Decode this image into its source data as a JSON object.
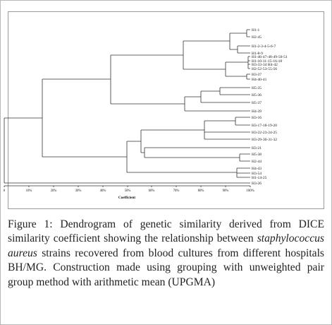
{
  "figure": {
    "axis_label": "Coefficient",
    "ticks": [
      "0",
      "10%",
      "20%",
      "30%",
      "40%",
      "50%",
      "60%",
      "70%",
      "80%",
      "90%",
      "100%"
    ],
    "leaves": [
      "H1-1",
      "H2-45",
      "H1-2-3-4-5-6-7",
      "H1-8-9",
      "H1-46-47-48-49-50-51",
      "H1-10-11-15-16-18",
      "H3-33-34 H4-42",
      "H2-52-53-55-56",
      "H3-37",
      "H4-40-41",
      "H5-35",
      "H5-36",
      "H5-37",
      "H4-39",
      "H3-16",
      "H3-17-18-19-20",
      "H3-22-23-24-25",
      "H3-29-30-31-32",
      "H3-21",
      "H5-38",
      "H2-44",
      "H4-43",
      "H3-54",
      "H1-14-25",
      "H3-26"
    ]
  },
  "caption": {
    "label": "Figure 1",
    "text_part1": ": Dendrogram of genetic similarity derived from DICE similarity coefficient showing the relationship between ",
    "species": "staphylococcus aureus",
    "text_part2": " strains recovered from blood cultures from different hospitals BH/MG. Construction made using grouping with unweighted pair group method with arithmetic mean (UPGMA)"
  }
}
